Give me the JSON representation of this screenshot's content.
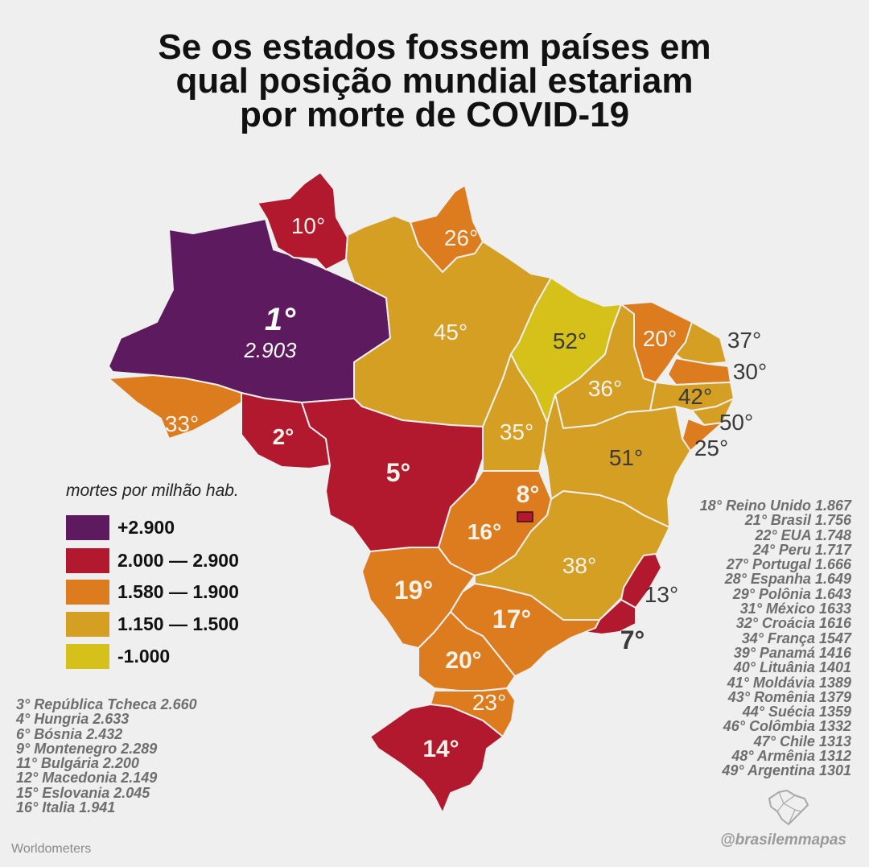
{
  "title": {
    "line1": "Se os estados fossem países em",
    "line2": "qual posição mundial estariam",
    "line3": "por morte de COVID-19"
  },
  "legend": {
    "title": "mortes por milhão hab.",
    "items": [
      {
        "label": "+2.900",
        "color": "#5e1a5e"
      },
      {
        "label": "2.000 — 2.900",
        "color": "#b3192e"
      },
      {
        "label": "1.580 — 1.900",
        "color": "#dd7b1f"
      },
      {
        "label": "1.150 — 1.500",
        "color": "#d49f22"
      },
      {
        "label": "-1.000",
        "color": "#d6c11a"
      }
    ]
  },
  "states": [
    {
      "id": "AM",
      "label": "1°",
      "value": "2.903",
      "color": "#5e1a5e"
    },
    {
      "id": "RR",
      "label": "10°",
      "color": "#b3192e"
    },
    {
      "id": "AP",
      "label": "26°",
      "color": "#dd7b1f"
    },
    {
      "id": "PA",
      "label": "45°",
      "color": "#d49f22"
    },
    {
      "id": "AC",
      "label": "33°",
      "color": "#dd7b1f"
    },
    {
      "id": "RO",
      "label": "2°",
      "color": "#b3192e"
    },
    {
      "id": "MT",
      "label": "5°",
      "color": "#b3192e"
    },
    {
      "id": "MA",
      "label": "52°",
      "color": "#d6c11a"
    },
    {
      "id": "PI",
      "label": "36°",
      "color": "#d49f22"
    },
    {
      "id": "CE",
      "label": "20°",
      "color": "#dd7b1f"
    },
    {
      "id": "RN",
      "label": "37°",
      "color": "#d49f22"
    },
    {
      "id": "PB",
      "label": "30°",
      "color": "#dd7b1f"
    },
    {
      "id": "PE",
      "label": "42°",
      "color": "#d49f22"
    },
    {
      "id": "AL",
      "label": "50°",
      "color": "#d49f22"
    },
    {
      "id": "SE",
      "label": "25°",
      "color": "#dd7b1f"
    },
    {
      "id": "TO",
      "label": "35°",
      "color": "#d49f22"
    },
    {
      "id": "BA",
      "label": "51°",
      "color": "#d49f22"
    },
    {
      "id": "DF",
      "label": "8°",
      "color": "#b3192e"
    },
    {
      "id": "GO",
      "label": "16°",
      "color": "#dd7b1f"
    },
    {
      "id": "MG",
      "label": "38°",
      "color": "#d49f22"
    },
    {
      "id": "ES",
      "label": "13°",
      "color": "#b3192e"
    },
    {
      "id": "RJ",
      "label": "7°",
      "color": "#b3192e"
    },
    {
      "id": "MS",
      "label": "19°",
      "color": "#dd7b1f"
    },
    {
      "id": "SP",
      "label": "17°",
      "color": "#dd7b1f"
    },
    {
      "id": "PR",
      "label": "20°",
      "color": "#dd7b1f"
    },
    {
      "id": "SC",
      "label": "23°",
      "color": "#dd7b1f"
    },
    {
      "id": "RS",
      "label": "14°",
      "color": "#b3192e"
    }
  ],
  "comparison_left": [
    "3° República Tcheca 2.660",
    "4° Hungria 2.633",
    "6° Bósnia 2.432",
    "9° Montenegro 2.289",
    "11° Bulgária 2.200",
    "12° Macedonia 2.149",
    "15° Eslovania 2.045",
    "16° Italia 1.941"
  ],
  "comparison_right": [
    "18° Reino Unido 1.867",
    "21° Brasil 1.756",
    "22° EUA 1.748",
    "24° Peru 1.717",
    "27° Portugal 1.666",
    "28° Espanha 1.649",
    "29° Polônia 1.643",
    "31° México 1633",
    "32° Croácia 1616",
    "34° França 1547",
    "39° Panamá 1416",
    "40° Lituânia 1401",
    "41° Moldávia 1389",
    "43° Romênia 1379",
    "44° Suécia 1359",
    "46° Colômbia 1332",
    "47° Chile 1313",
    "48° Armênia 1312",
    "49° Argentina 1301"
  ],
  "source": "Worldometers",
  "credit": "@brasilemmapas"
}
